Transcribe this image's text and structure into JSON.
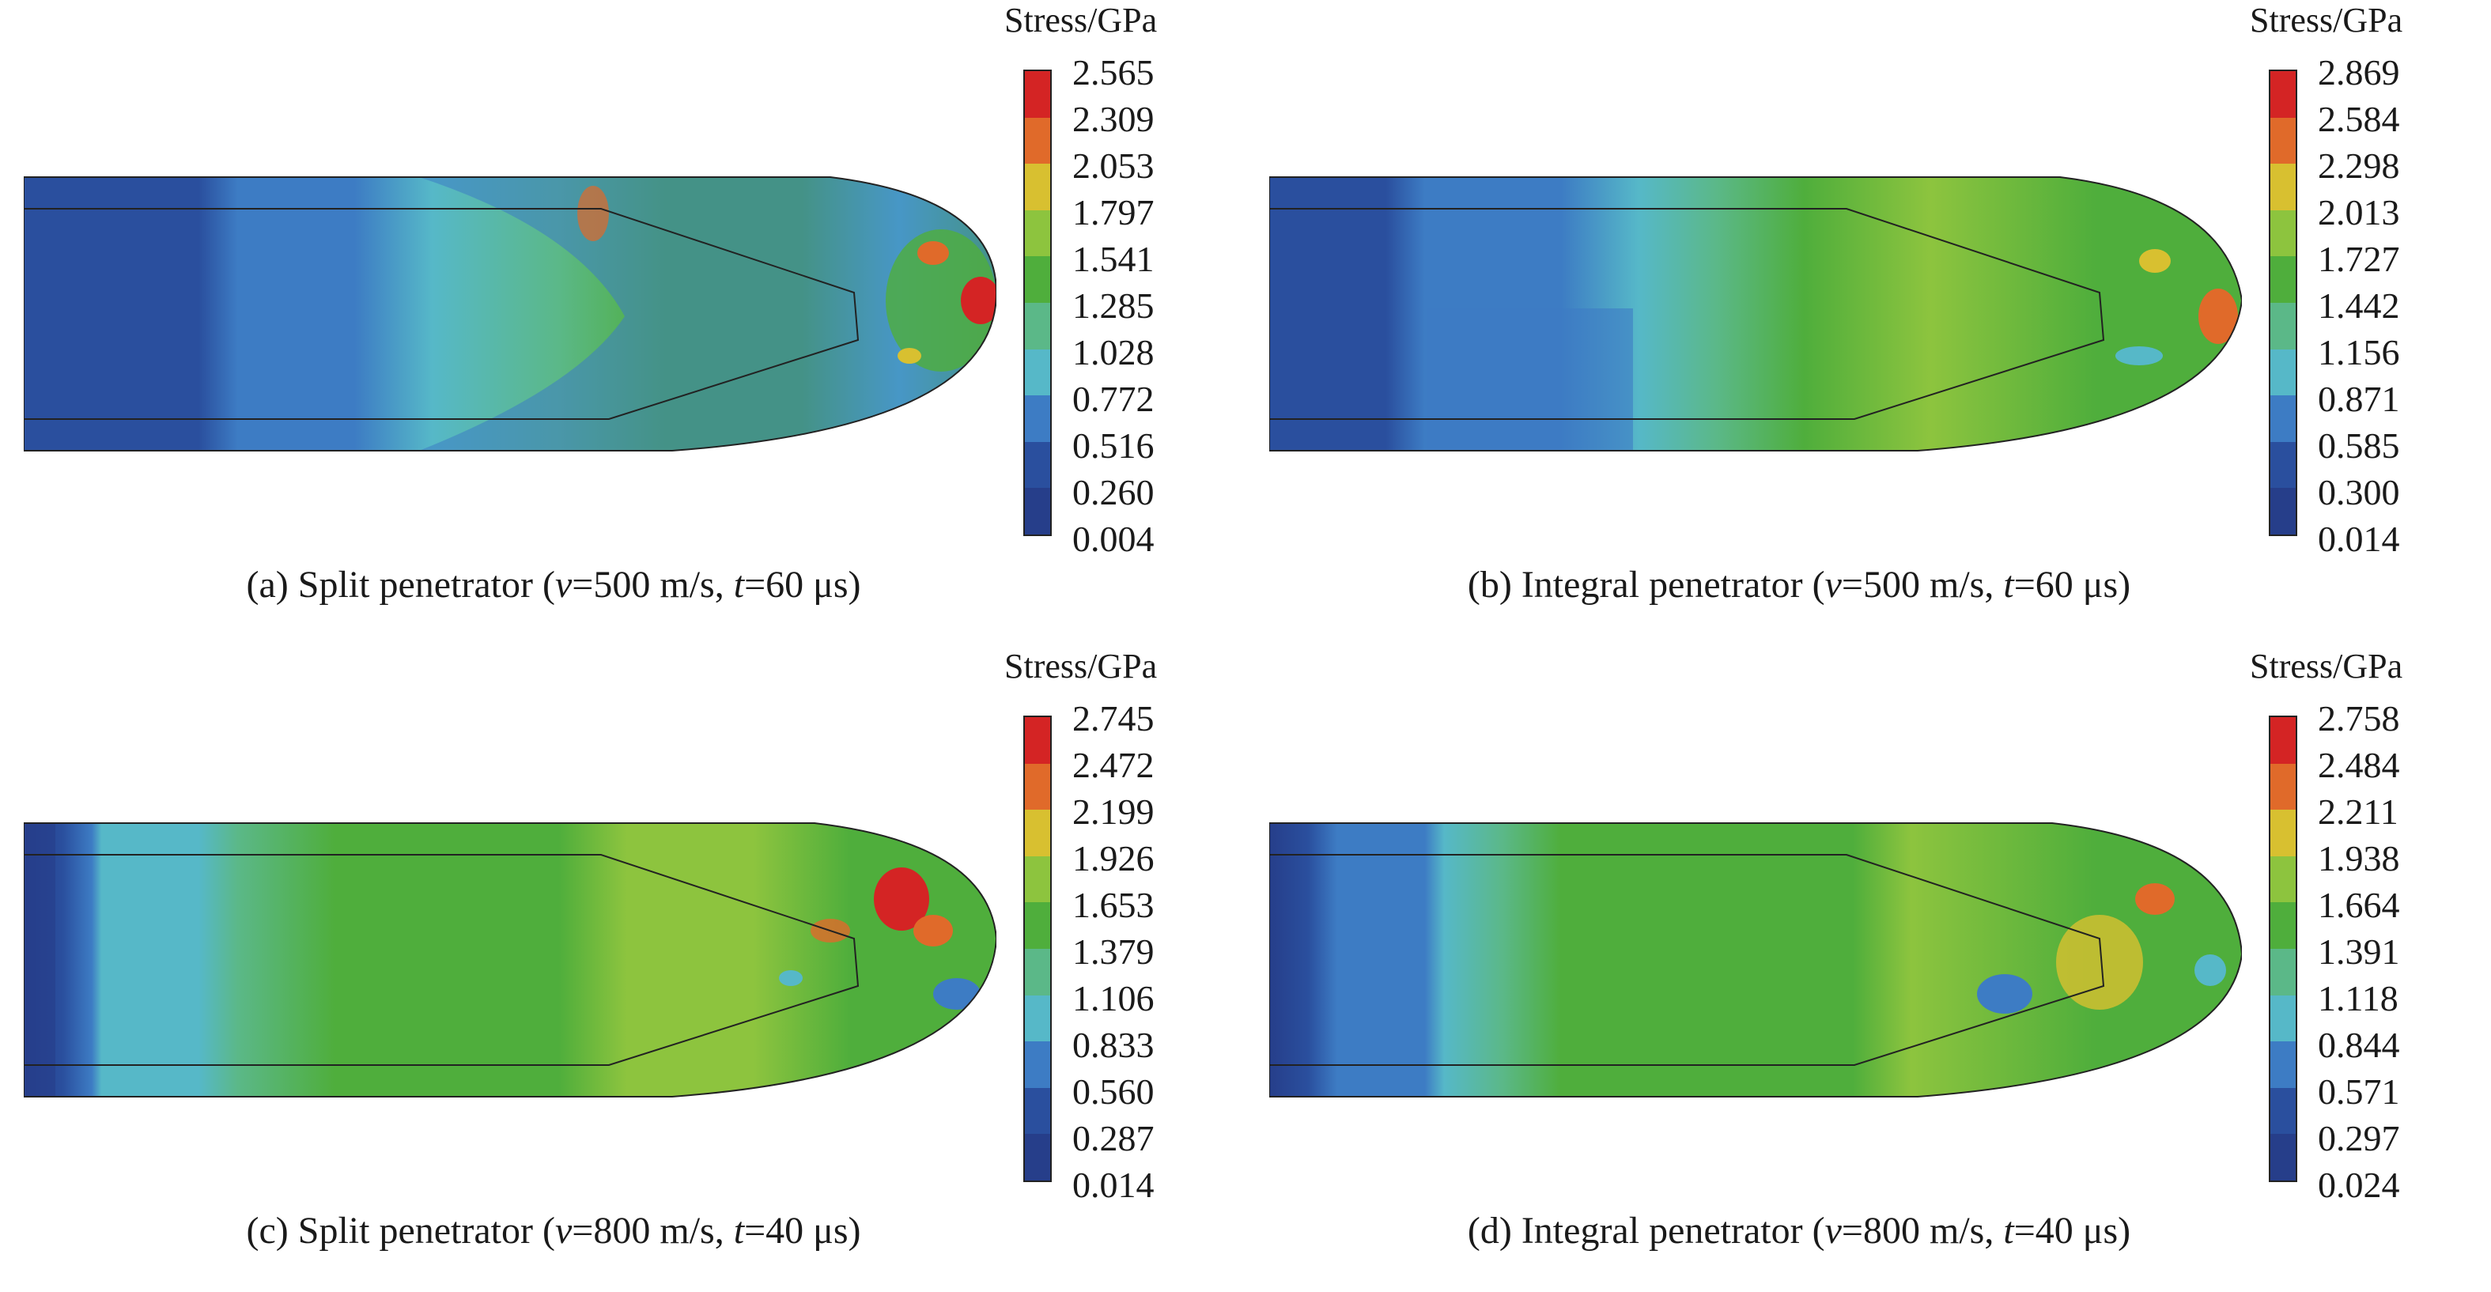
{
  "colorbar_colors": [
    "#d42424",
    "#e06a2a",
    "#d8c030",
    "#8dc43e",
    "#4fae3c",
    "#5bb888",
    "#56b8c8",
    "#3d7cc4",
    "#2a4f9e",
    "#263e8a"
  ],
  "panels": [
    {
      "id": "a",
      "legend_title": "Stress/GPa",
      "ticks": [
        "2.565",
        "2.309",
        "2.053",
        "1.797",
        "1.541",
        "1.285",
        "1.028",
        "0.772",
        "0.516",
        "0.260",
        "0.004"
      ],
      "caption": {
        "prefix": "(a) Split penetrator (",
        "v": "v",
        "mid": "=500 m/s, ",
        "t": "t",
        "suffix": "=60 μs)"
      }
    },
    {
      "id": "b",
      "legend_title": "Stress/GPa",
      "ticks": [
        "2.869",
        "2.584",
        "2.298",
        "2.013",
        "1.727",
        "1.442",
        "1.156",
        "0.871",
        "0.585",
        "0.300",
        "0.014"
      ],
      "caption": {
        "prefix": "(b) Integral penetrator (",
        "v": "v",
        "mid": "=500 m/s, ",
        "t": "t",
        "suffix": "=60 μs)"
      }
    },
    {
      "id": "c",
      "legend_title": "Stress/GPa",
      "ticks": [
        "2.745",
        "2.472",
        "2.199",
        "1.926",
        "1.653",
        "1.379",
        "1.106",
        "0.833",
        "0.560",
        "0.287",
        "0.014"
      ],
      "caption": {
        "prefix": "(c) Split penetrator (",
        "v": "v",
        "mid": "=800 m/s, ",
        "t": "t",
        "suffix": "=40 μs)"
      }
    },
    {
      "id": "d",
      "legend_title": "Stress/GPa",
      "ticks": [
        "2.758",
        "2.484",
        "2.211",
        "1.938",
        "1.664",
        "1.391",
        "1.118",
        "0.844",
        "0.571",
        "0.297",
        "0.024"
      ],
      "caption": {
        "prefix": "(d) Integral penetrator (",
        "v": "v",
        "mid": "=800 m/s, ",
        "t": "t",
        "suffix": "=40 μs)"
      }
    }
  ]
}
